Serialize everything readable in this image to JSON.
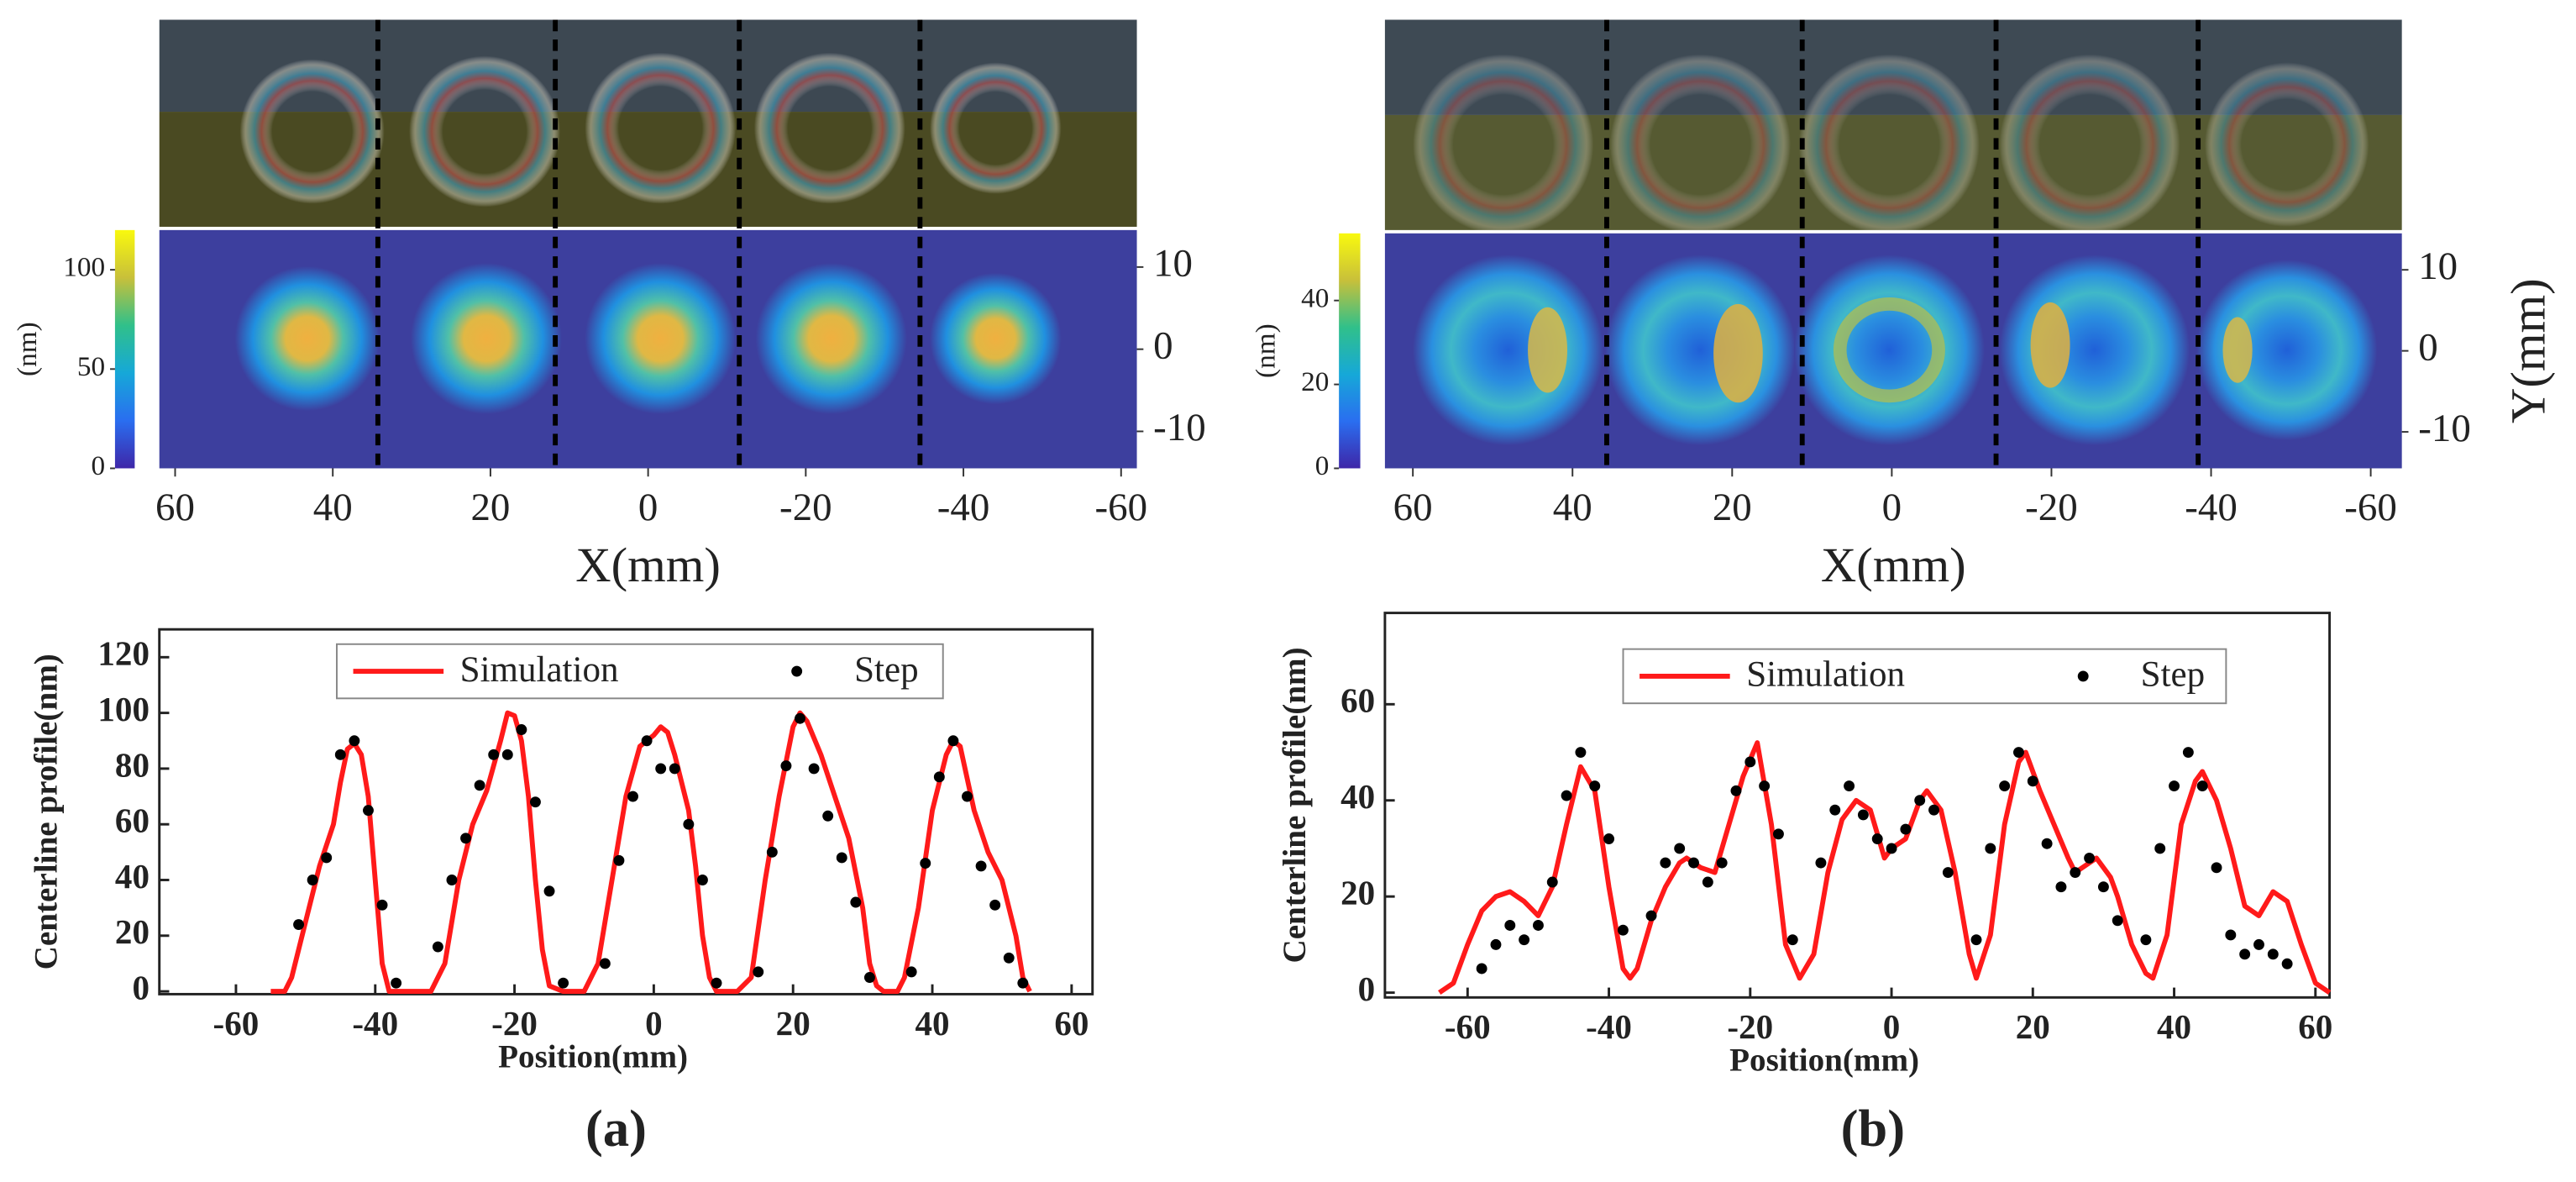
{
  "chart_data": [
    {
      "type": "heatmap",
      "xlabel": "X(mm)",
      "xlim": [
        62,
        -62
      ],
      "xticks": [
        60,
        40,
        20,
        0,
        -20,
        -40,
        -60
      ],
      "ylim": [
        -14.5,
        14.5
      ],
      "yticks": [
        10,
        0,
        -10
      ],
      "colorbar": {
        "label": "(nm)",
        "lim": [
          0,
          120
        ],
        "ticks": [
          0,
          50,
          100
        ]
      }
    },
    {
      "type": "profile",
      "panel_label": "(a)",
      "xlabel": "Position(mm)",
      "ylabel": "Centerline profile(nm)",
      "xlim": [
        -71,
        63
      ],
      "xticks": [
        -60,
        -40,
        -20,
        0,
        20,
        40,
        60
      ],
      "ylim": [
        -1,
        130
      ],
      "yticks": [
        0,
        20,
        40,
        60,
        80,
        100,
        120
      ],
      "legend": "top",
      "series": [
        {
          "name": "Simulation",
          "kind": "line",
          "color": "#ff1a1a",
          "x": [
            -55,
            -53,
            -52,
            -50,
            -48,
            -46,
            -45,
            -44,
            -43,
            -42,
            -41,
            -40,
            -39,
            -38,
            -36,
            -32,
            -30,
            -28,
            -26,
            -24,
            -22,
            -21,
            -20,
            -19,
            -18,
            -17,
            -16,
            -15,
            -13,
            -10,
            -8,
            -6,
            -4,
            -2,
            -1,
            0,
            1,
            2,
            3,
            4,
            5,
            6,
            7,
            8,
            9,
            12,
            14,
            16,
            18,
            20,
            21,
            22,
            24,
            26,
            28,
            30,
            31,
            32,
            33,
            35,
            36,
            38,
            40,
            42,
            43,
            44,
            46,
            48,
            50,
            52,
            53,
            54
          ],
          "values": [
            0,
            0,
            5,
            25,
            45,
            60,
            75,
            87,
            89,
            85,
            70,
            40,
            10,
            0,
            0,
            0,
            10,
            40,
            60,
            72,
            90,
            100,
            99,
            90,
            70,
            40,
            15,
            2,
            0,
            0,
            10,
            40,
            70,
            88,
            90,
            92,
            95,
            93,
            85,
            75,
            65,
            45,
            20,
            5,
            0,
            0,
            5,
            40,
            70,
            95,
            100,
            97,
            85,
            70,
            55,
            30,
            10,
            2,
            0,
            0,
            5,
            30,
            65,
            85,
            90,
            88,
            65,
            50,
            40,
            20,
            5,
            0
          ]
        },
        {
          "name": "Step",
          "kind": "scatter",
          "color": "#000000",
          "x": [
            -51,
            -49,
            -47,
            -45,
            -43,
            -41,
            -39,
            -37,
            -31,
            -29,
            -27,
            -25,
            -23,
            -21,
            -19,
            -17,
            -15,
            -13,
            -7,
            -5,
            -3,
            -1,
            1,
            3,
            5,
            7,
            9,
            15,
            17,
            19,
            21,
            23,
            25,
            27,
            29,
            31,
            37,
            39,
            41,
            43,
            45,
            47,
            49,
            51,
            53
          ],
          "values": [
            24,
            40,
            48,
            85,
            90,
            65,
            31,
            3,
            16,
            40,
            55,
            74,
            85,
            85,
            94,
            68,
            36,
            3,
            10,
            47,
            70,
            90,
            80,
            80,
            60,
            40,
            3,
            7,
            50,
            81,
            98,
            80,
            63,
            48,
            32,
            5,
            7,
            46,
            77,
            90,
            70,
            45,
            31,
            12,
            3
          ]
        }
      ]
    },
    {
      "type": "heatmap",
      "xlabel": "X(mm)",
      "ylabel": "Y(mm)",
      "xlim": [
        63.5,
        -63.9
      ],
      "xticks": [
        60,
        40,
        20,
        0,
        -20,
        -40,
        -60
      ],
      "ylim": [
        -14.5,
        14.5
      ],
      "yticks": [
        10,
        0,
        -10
      ],
      "colorbar": {
        "label": "(nm)",
        "lim": [
          0,
          56
        ],
        "ticks": [
          0,
          20,
          40
        ]
      }
    },
    {
      "type": "profile",
      "panel_label": "(b)",
      "xlabel": "Position(mm)",
      "ylabel": "Centerline profile(nm)",
      "xlim": [
        -71.7,
        62
      ],
      "xticks": [
        -60,
        -40,
        -20,
        0,
        20,
        40,
        60
      ],
      "ylim": [
        -1,
        79
      ],
      "yticks": [
        0,
        20,
        40,
        60
      ],
      "legend": "top",
      "series": [
        {
          "name": "Simulation",
          "kind": "line",
          "color": "#ff1a1a",
          "x": [
            -64,
            -62,
            -60,
            -58,
            -56,
            -54,
            -52,
            -50,
            -48,
            -46,
            -44,
            -42,
            -40,
            -38,
            -37,
            -36,
            -34,
            -32,
            -30,
            -29,
            -27,
            -25,
            -23,
            -21,
            -19,
            -17,
            -15,
            -13,
            -11,
            -9,
            -7,
            -5,
            -3,
            -1,
            0,
            2,
            4,
            5,
            7,
            9,
            11,
            12,
            14,
            16,
            18,
            19,
            21,
            23,
            25,
            26,
            28,
            29,
            31,
            32,
            34,
            36,
            37,
            39,
            41,
            43,
            44,
            46,
            48,
            50,
            52,
            54,
            56,
            58,
            60,
            62
          ],
          "values": [
            0,
            2,
            10,
            17,
            20,
            21,
            19,
            16,
            22,
            35,
            47,
            42,
            22,
            5,
            3,
            5,
            15,
            22,
            27,
            28,
            26,
            25,
            35,
            45,
            52,
            35,
            10,
            3,
            8,
            25,
            36,
            40,
            38,
            28,
            30,
            32,
            40,
            42,
            38,
            25,
            8,
            3,
            12,
            35,
            48,
            50,
            42,
            35,
            28,
            25,
            27,
            28,
            24,
            20,
            10,
            4,
            3,
            12,
            35,
            44,
            46,
            40,
            30,
            18,
            16,
            21,
            19,
            10,
            2,
            0
          ]
        },
        {
          "name": "Step",
          "kind": "scatter",
          "color": "#000000",
          "x": [
            -58,
            -56,
            -54,
            -52,
            -50,
            -48,
            -46,
            -44,
            -42,
            -40,
            -38,
            -34,
            -32,
            -30,
            -28,
            -26,
            -24,
            -22,
            -20,
            -18,
            -16,
            -14,
            -10,
            -8,
            -6,
            -4,
            -2,
            0,
            2,
            4,
            6,
            8,
            12,
            14,
            16,
            18,
            20,
            22,
            24,
            26,
            28,
            30,
            32,
            36,
            38,
            40,
            42,
            44,
            46,
            48,
            50,
            52,
            54,
            56
          ],
          "values": [
            5,
            10,
            14,
            11,
            14,
            23,
            41,
            50,
            43,
            32,
            13,
            16,
            27,
            30,
            27,
            23,
            27,
            42,
            48,
            43,
            33,
            11,
            27,
            38,
            43,
            37,
            32,
            30,
            34,
            40,
            38,
            25,
            11,
            30,
            43,
            50,
            44,
            31,
            22,
            25,
            28,
            22,
            15,
            11,
            30,
            43,
            50,
            43,
            26,
            12,
            8,
            10,
            8,
            6
          ]
        }
      ]
    }
  ]
}
